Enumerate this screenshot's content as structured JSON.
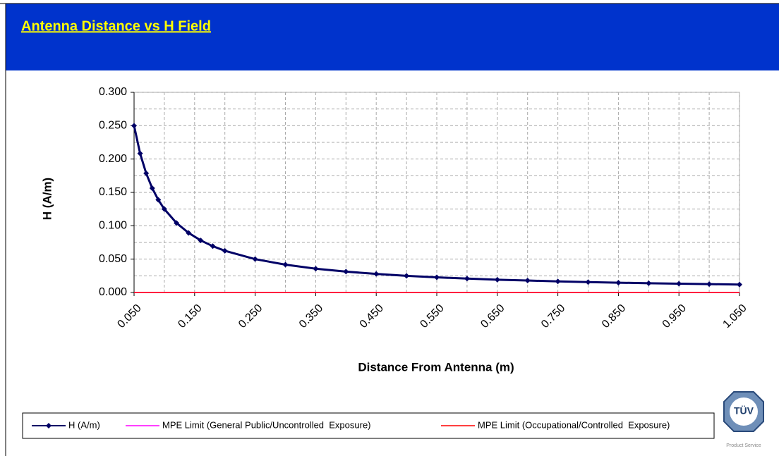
{
  "chart_data": {
    "type": "line",
    "title": "Antenna Distance vs H Field",
    "xlabel": "Distance From Antenna (m)",
    "ylabel": "H (A/m)",
    "xlim": [
      0.05,
      1.05
    ],
    "ylim": [
      0,
      0.3
    ],
    "xticks": [
      {
        "value": 0.05,
        "label": "0.050"
      },
      {
        "value": 0.15,
        "label": "0.150"
      },
      {
        "value": 0.25,
        "label": "0.250"
      },
      {
        "value": 0.35,
        "label": "0.350"
      },
      {
        "value": 0.45,
        "label": "0.450"
      },
      {
        "value": 0.55,
        "label": "0.550"
      },
      {
        "value": 0.65,
        "label": "0.650"
      },
      {
        "value": 0.75,
        "label": "0.750"
      },
      {
        "value": 0.85,
        "label": "0.850"
      },
      {
        "value": 0.95,
        "label": "0.950"
      },
      {
        "value": 1.05,
        "label": "1.050"
      }
    ],
    "yticks": [
      {
        "value": 0,
        "label": "0.000"
      },
      {
        "value": 0.05,
        "label": "0.050"
      },
      {
        "value": 0.1,
        "label": "0.100"
      },
      {
        "value": 0.15,
        "label": "0.150"
      },
      {
        "value": 0.2,
        "label": "0.200"
      },
      {
        "value": 0.25,
        "label": "0.250"
      },
      {
        "value": 0.3,
        "label": "0.300"
      }
    ],
    "xgrid": [
      0.1,
      0.2,
      0.3,
      0.4,
      0.5,
      0.6,
      0.7,
      0.8,
      0.9,
      1.0
    ],
    "ygrid": [
      0.025,
      0.075,
      0.125,
      0.175,
      0.225,
      0.275
    ],
    "grid": true,
    "series": [
      {
        "name": "H (A/m)",
        "color": "#000066",
        "x": [
          0.05,
          0.06,
          0.07,
          0.08,
          0.09,
          0.1,
          0.12,
          0.14,
          0.16,
          0.18,
          0.2,
          0.25,
          0.3,
          0.35,
          0.4,
          0.45,
          0.5,
          0.55,
          0.6,
          0.65,
          0.7,
          0.75,
          0.8,
          0.85,
          0.9,
          0.95,
          1.0,
          1.05
        ],
        "values": [
          0.25,
          0.2083,
          0.1786,
          0.1563,
          0.1389,
          0.125,
          0.1042,
          0.0893,
          0.0781,
          0.0694,
          0.0625,
          0.05,
          0.0417,
          0.0357,
          0.0313,
          0.0278,
          0.025,
          0.0227,
          0.0208,
          0.0192,
          0.0179,
          0.0167,
          0.0156,
          0.0147,
          0.0139,
          0.0132,
          0.0125,
          0.0119
        ]
      },
      {
        "name": "MPE Limit (General Public/Uncontrolled  Exposure)",
        "color": "#ff00ff",
        "x": [
          0.05,
          1.05
        ],
        "values": [
          0,
          0
        ]
      },
      {
        "name": "MPE Limit (Occupational/Controlled  Exposure)",
        "color": "#ff0000",
        "x": [
          0.05,
          1.05
        ],
        "values": [
          0,
          0
        ]
      }
    ]
  },
  "logo": {
    "text": "TÜV",
    "caption": "Product Service"
  }
}
